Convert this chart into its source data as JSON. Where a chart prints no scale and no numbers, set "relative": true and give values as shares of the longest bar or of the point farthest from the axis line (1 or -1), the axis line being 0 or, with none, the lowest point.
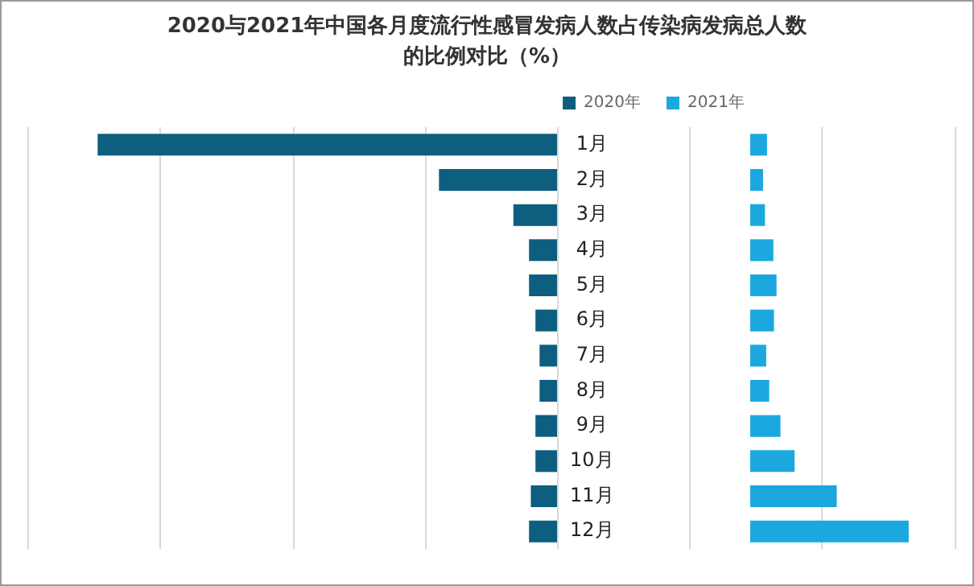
{
  "chart_data": [
    {
      "type": "bar",
      "orientation": "horizontal",
      "relative": true,
      "title": "2020与2021年中国各月度流行性感冒发病人数占传染病发病总人数的比例对比（%）",
      "categories": [
        "1月",
        "2月",
        "3月",
        "4月",
        "5月",
        "6月",
        "7月",
        "8月",
        "9月",
        "10月",
        "11月",
        "12月"
      ],
      "series": [
        {
          "name": "2020年",
          "color": "#0d5e7f",
          "values": [
            1,
            0.257,
            0.095,
            0.061,
            0.061,
            0.047,
            0.038,
            0.038,
            0.047,
            0.047,
            0.057,
            0.061
          ]
        }
      ],
      "legend": "top right",
      "grid": true,
      "tick_labels": "y"
    },
    {
      "type": "bar",
      "orientation": "horizontal",
      "relative": true,
      "categories": [
        null,
        null,
        null,
        null,
        null,
        null,
        null,
        null,
        null,
        null,
        null,
        null
      ],
      "series": [
        {
          "name": "2021年",
          "color": "#1ba8df",
          "values": [
            0.106,
            0.081,
            0.093,
            0.146,
            0.166,
            0.15,
            0.101,
            0.12,
            0.191,
            0.28,
            0.546,
            1
          ]
        }
      ],
      "legend": "top left",
      "tick_labels": false
    }
  ]
}
